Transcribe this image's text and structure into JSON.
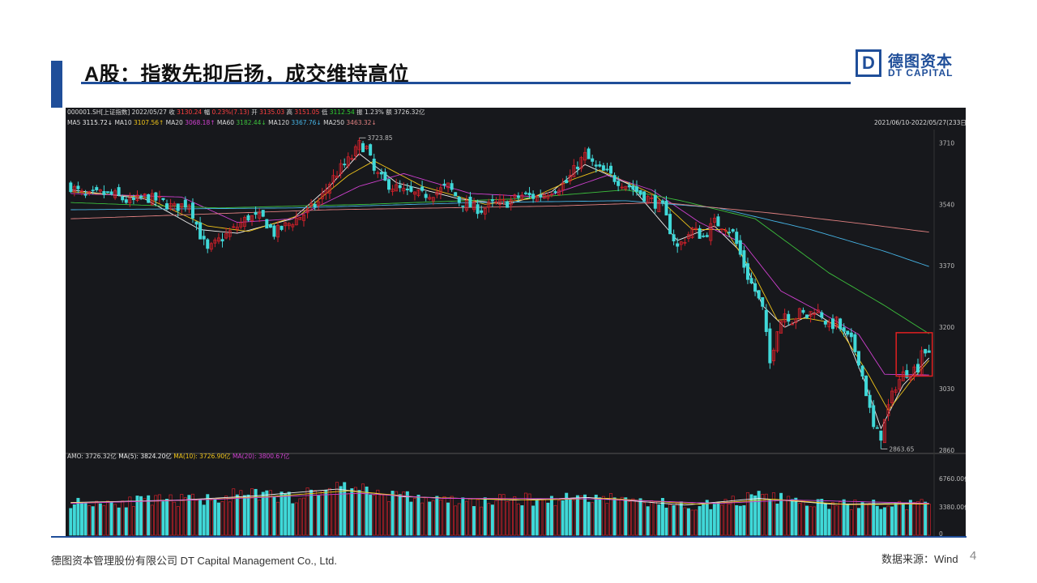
{
  "page": {
    "title": "A股：指数先抑后扬，成交维持高位",
    "logo_cn": "德图资本",
    "logo_en": "DT CAPITAL",
    "logo_mark": "D",
    "footer_left": "德图资本管理股份有限公司  DT Capital Management  Co., Ltd.",
    "footer_right": "数据来源：Wind",
    "page_number": "4"
  },
  "colors": {
    "brand_blue": "#1f4e99",
    "up": "#d0202a",
    "down": "#40d8d8",
    "ma5": "#f0f0f0",
    "ma10": "#f0c419",
    "ma20": "#d040d0",
    "ma60": "#3cc03c",
    "ma120": "#46b4e6",
    "ma250": "#e08080",
    "highlight_box": "#e02020"
  },
  "header": {
    "line1": [
      {
        "text": "000001.SH[上证指数]",
        "color": "#d9d9d9"
      },
      {
        "text": "2022/05/27",
        "color": "#d9d9d9"
      },
      {
        "text": "收",
        "color": "#d9d9d9"
      },
      {
        "text": "3130.24",
        "color": "#ff4040"
      },
      {
        "text": "幅",
        "color": "#d9d9d9"
      },
      {
        "text": "0.23%(7.13)",
        "color": "#ff4040"
      },
      {
        "text": "开",
        "color": "#d9d9d9"
      },
      {
        "text": "3135.03",
        "color": "#ff4040"
      },
      {
        "text": "高",
        "color": "#d9d9d9"
      },
      {
        "text": "3151.05",
        "color": "#ff4040"
      },
      {
        "text": "低",
        "color": "#d9d9d9"
      },
      {
        "text": "3112.54",
        "color": "#30d030"
      },
      {
        "text": "振",
        "color": "#d9d9d9"
      },
      {
        "text": "1.23%",
        "color": "#d9d9d9"
      },
      {
        "text": "额",
        "color": "#d9d9d9"
      },
      {
        "text": "3726.32亿",
        "color": "#d9d9d9"
      }
    ],
    "line2": [
      {
        "text": "MA5",
        "color": "#d9d9d9"
      },
      {
        "text": "3115.72↓",
        "color": "#f0f0f0"
      },
      {
        "text": "MA10",
        "color": "#d9d9d9"
      },
      {
        "text": "3107.56↑",
        "color": "#f0c419"
      },
      {
        "text": "MA20",
        "color": "#d9d9d9"
      },
      {
        "text": "3068.18↑",
        "color": "#d040d0"
      },
      {
        "text": "MA60",
        "color": "#d9d9d9"
      },
      {
        "text": "3182.44↓",
        "color": "#3cc03c"
      },
      {
        "text": "MA120",
        "color": "#d9d9d9"
      },
      {
        "text": "3367.76↓",
        "color": "#46b4e6"
      },
      {
        "text": "MA250",
        "color": "#d9d9d9"
      },
      {
        "text": "3463.32↓",
        "color": "#e08080"
      }
    ],
    "range": "2021/06/10-2022/05/27(233日)",
    "high_label": "3723.85",
    "low_label": "2863.65",
    "vol_header": [
      {
        "text": "AMO: 3726.32亿",
        "color": "#d9d9d9"
      },
      {
        "text": "MA(5): 3824.20亿",
        "color": "#f0f0f0"
      },
      {
        "text": "MA(10): 3726.90亿",
        "color": "#f0c419"
      },
      {
        "text": "MA(20): 3800.67亿",
        "color": "#d040d0"
      }
    ]
  },
  "chart_data": {
    "type": "candlestick",
    "x_range": [
      "2021/06/10",
      "2022/05/27"
    ],
    "ylim": [
      2860,
      3740
    ],
    "price_ticks": [
      3710,
      3540,
      3370,
      3200,
      3030,
      2860
    ],
    "volume_ticks": [
      "6760.00亿",
      "3380.00亿",
      "0"
    ],
    "volume_ylim": [
      0,
      8500
    ],
    "keypoints": [
      [
        0,
        3590
      ],
      [
        4,
        3560
      ],
      [
        8,
        3570
      ],
      [
        12,
        3565
      ],
      [
        16,
        3545
      ],
      [
        20,
        3560
      ],
      [
        24,
        3550
      ],
      [
        28,
        3530
      ],
      [
        32,
        3545
      ],
      [
        35,
        3455
      ],
      [
        37,
        3410
      ],
      [
        40,
        3440
      ],
      [
        44,
        3470
      ],
      [
        48,
        3505
      ],
      [
        52,
        3500
      ],
      [
        55,
        3460
      ],
      [
        58,
        3480
      ],
      [
        61,
        3500
      ],
      [
        64,
        3520
      ],
      [
        67,
        3545
      ],
      [
        70,
        3600
      ],
      [
        73,
        3640
      ],
      [
        76,
        3670
      ],
      [
        78,
        3705
      ],
      [
        80,
        3695
      ],
      [
        82,
        3630
      ],
      [
        85,
        3600
      ],
      [
        88,
        3585
      ],
      [
        91,
        3570
      ],
      [
        95,
        3565
      ],
      [
        99,
        3575
      ],
      [
        102,
        3590
      ],
      [
        105,
        3550
      ],
      [
        108,
        3535
      ],
      [
        111,
        3525
      ],
      [
        114,
        3540
      ],
      [
        118,
        3545
      ],
      [
        122,
        3565
      ],
      [
        126,
        3560
      ],
      [
        130,
        3580
      ],
      [
        134,
        3600
      ],
      [
        137,
        3650
      ],
      [
        139,
        3675
      ],
      [
        142,
        3640
      ],
      [
        145,
        3625
      ],
      [
        148,
        3605
      ],
      [
        151,
        3590
      ],
      [
        154,
        3570
      ],
      [
        157,
        3550
      ],
      [
        160,
        3530
      ],
      [
        162,
        3470
      ],
      [
        164,
        3420
      ],
      [
        166,
        3445
      ],
      [
        168,
        3470
      ],
      [
        171,
        3450
      ],
      [
        174,
        3490
      ],
      [
        177,
        3480
      ],
      [
        179,
        3460
      ],
      [
        181,
        3400
      ],
      [
        183,
        3340
      ],
      [
        185,
        3300
      ],
      [
        187,
        3250
      ],
      [
        189,
        3100
      ],
      [
        191,
        3200
      ],
      [
        193,
        3240
      ],
      [
        195,
        3220
      ],
      [
        197,
        3240
      ],
      [
        199,
        3230
      ],
      [
        201,
        3250
      ],
      [
        203,
        3235
      ],
      [
        205,
        3200
      ],
      [
        207,
        3215
      ],
      [
        209,
        3180
      ],
      [
        211,
        3160
      ],
      [
        213,
        3110
      ],
      [
        215,
        3020
      ],
      [
        217,
        2920
      ],
      [
        219,
        2900
      ],
      [
        221,
        2980
      ],
      [
        223,
        3040
      ],
      [
        225,
        3070
      ],
      [
        227,
        3080
      ],
      [
        229,
        3090
      ],
      [
        230,
        3140
      ],
      [
        232,
        3130
      ]
    ],
    "ma_lines": {
      "MA5": [
        [
          0,
          3580
        ],
        [
          20,
          3555
        ],
        [
          35,
          3470
        ],
        [
          45,
          3460
        ],
        [
          60,
          3500
        ],
        [
          70,
          3590
        ],
        [
          78,
          3680
        ],
        [
          88,
          3600
        ],
        [
          105,
          3555
        ],
        [
          118,
          3540
        ],
        [
          130,
          3575
        ],
        [
          139,
          3650
        ],
        [
          151,
          3595
        ],
        [
          164,
          3440
        ],
        [
          174,
          3480
        ],
        [
          181,
          3410
        ],
        [
          187,
          3260
        ],
        [
          193,
          3200
        ],
        [
          201,
          3240
        ],
        [
          209,
          3190
        ],
        [
          215,
          3040
        ],
        [
          219,
          2920
        ],
        [
          225,
          3040
        ],
        [
          232,
          3115
        ]
      ],
      "MA10": [
        [
          0,
          3575
        ],
        [
          20,
          3560
        ],
        [
          37,
          3480
        ],
        [
          48,
          3465
        ],
        [
          62,
          3510
        ],
        [
          75,
          3620
        ],
        [
          82,
          3660
        ],
        [
          95,
          3590
        ],
        [
          112,
          3540
        ],
        [
          124,
          3555
        ],
        [
          136,
          3610
        ],
        [
          143,
          3635
        ],
        [
          158,
          3565
        ],
        [
          168,
          3470
        ],
        [
          177,
          3470
        ],
        [
          185,
          3340
        ],
        [
          191,
          3220
        ],
        [
          199,
          3225
        ],
        [
          207,
          3210
        ],
        [
          215,
          3080
        ],
        [
          221,
          2970
        ],
        [
          227,
          3050
        ],
        [
          232,
          3108
        ]
      ],
      "MA20": [
        [
          0,
          3570
        ],
        [
          30,
          3560
        ],
        [
          45,
          3490
        ],
        [
          60,
          3500
        ],
        [
          78,
          3590
        ],
        [
          90,
          3625
        ],
        [
          108,
          3570
        ],
        [
          128,
          3560
        ],
        [
          145,
          3620
        ],
        [
          157,
          3580
        ],
        [
          170,
          3490
        ],
        [
          182,
          3430
        ],
        [
          192,
          3300
        ],
        [
          203,
          3240
        ],
        [
          213,
          3180
        ],
        [
          220,
          3070
        ],
        [
          232,
          3068
        ]
      ],
      "MA60": [
        [
          0,
          3545
        ],
        [
          40,
          3530
        ],
        [
          80,
          3540
        ],
        [
          120,
          3555
        ],
        [
          150,
          3580
        ],
        [
          165,
          3550
        ],
        [
          185,
          3500
        ],
        [
          205,
          3350
        ],
        [
          220,
          3260
        ],
        [
          232,
          3182
        ]
      ],
      "MA120": [
        [
          0,
          3525
        ],
        [
          60,
          3530
        ],
        [
          110,
          3545
        ],
        [
          150,
          3550
        ],
        [
          175,
          3530
        ],
        [
          200,
          3470
        ],
        [
          220,
          3410
        ],
        [
          232,
          3368
        ]
      ],
      "MA250": [
        [
          0,
          3500
        ],
        [
          70,
          3525
        ],
        [
          130,
          3535
        ],
        [
          160,
          3545
        ],
        [
          190,
          3515
        ],
        [
          215,
          3485
        ],
        [
          232,
          3463
        ]
      ]
    },
    "volume_keypoints": [
      [
        0,
        3900
      ],
      [
        12,
        3950
      ],
      [
        24,
        4100
      ],
      [
        36,
        4300
      ],
      [
        44,
        4700
      ],
      [
        52,
        4800
      ],
      [
        58,
        4500
      ],
      [
        64,
        4800
      ],
      [
        70,
        5600
      ],
      [
        76,
        5800
      ],
      [
        82,
        5100
      ],
      [
        90,
        4600
      ],
      [
        100,
        4100
      ],
      [
        110,
        3900
      ],
      [
        120,
        4300
      ],
      [
        130,
        4200
      ],
      [
        138,
        4600
      ],
      [
        146,
        4400
      ],
      [
        156,
        4000
      ],
      [
        166,
        3500
      ],
      [
        176,
        3700
      ],
      [
        184,
        4500
      ],
      [
        192,
        4400
      ],
      [
        198,
        3800
      ],
      [
        206,
        3600
      ],
      [
        214,
        3700
      ],
      [
        220,
        3500
      ],
      [
        226,
        3600
      ],
      [
        232,
        3726
      ]
    ],
    "vol_ma5": [
      [
        0,
        3900
      ],
      [
        30,
        4200
      ],
      [
        50,
        4700
      ],
      [
        72,
        5500
      ],
      [
        90,
        4600
      ],
      [
        120,
        4200
      ],
      [
        140,
        4500
      ],
      [
        166,
        3600
      ],
      [
        186,
        4400
      ],
      [
        206,
        3700
      ],
      [
        232,
        3824
      ]
    ],
    "vol_ma10": [
      [
        0,
        3850
      ],
      [
        30,
        4150
      ],
      [
        55,
        4650
      ],
      [
        75,
        5300
      ],
      [
        95,
        4500
      ],
      [
        125,
        4200
      ],
      [
        145,
        4400
      ],
      [
        170,
        3700
      ],
      [
        190,
        4300
      ],
      [
        210,
        3650
      ],
      [
        232,
        3727
      ]
    ],
    "vol_ma20": [
      [
        0,
        3800
      ],
      [
        40,
        4300
      ],
      [
        78,
        5000
      ],
      [
        100,
        4400
      ],
      [
        140,
        4350
      ],
      [
        175,
        3800
      ],
      [
        195,
        4200
      ],
      [
        232,
        3801
      ]
    ],
    "annotations": [
      "3723.85",
      "2863.65"
    ]
  }
}
